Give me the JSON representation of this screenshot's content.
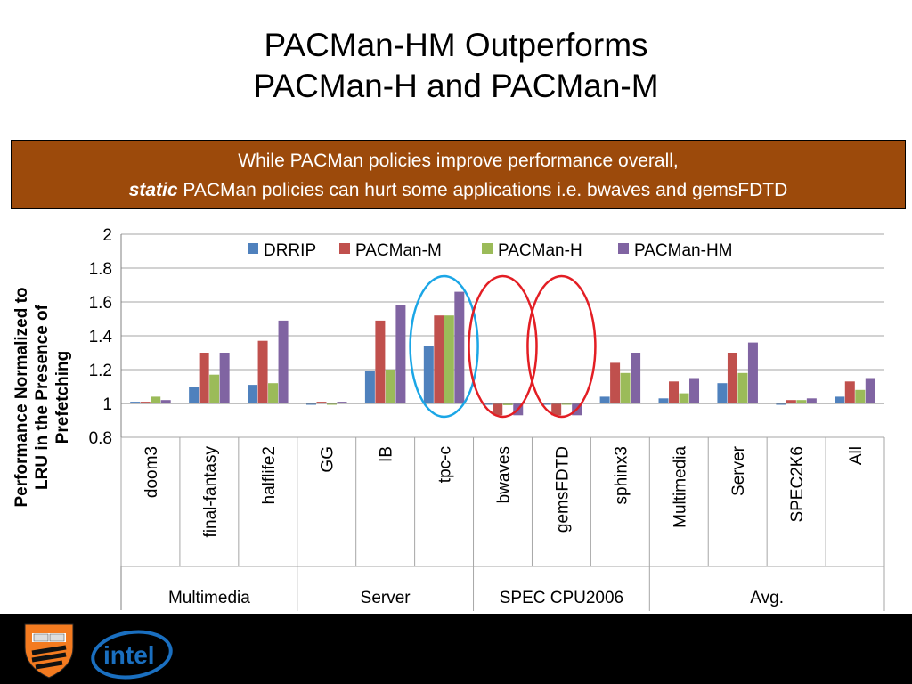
{
  "title": {
    "line1": "PACMan-HM Outperforms",
    "line2": "PACMan-H and PACMan-M"
  },
  "banner": {
    "line1": "While PACMan policies improve performance overall,",
    "emph": "static",
    "line2_rest": " PACMan policies can hurt some applications i.e. bwaves and gemsFDTD",
    "bg_color": "#9c4a0b"
  },
  "chart_data": {
    "type": "bar",
    "ylabel": "Performance Normalized to LRU in the Presence of Prefetching",
    "ylim": [
      0.8,
      2
    ],
    "yticks": [
      0.8,
      1,
      1.2,
      1.4,
      1.6,
      1.8,
      2
    ],
    "baseline": 1,
    "grid": true,
    "legend_position": "top",
    "categories": [
      "doom3",
      "final-fantasy",
      "halflife2",
      "GG",
      "IB",
      "tpc-c",
      "bwaves",
      "gemsFDTD",
      "sphinx3",
      "Multimedia",
      "Server",
      "SPEC2K6",
      "All"
    ],
    "groups": [
      {
        "label": "Multimedia",
        "span": 3
      },
      {
        "label": "Server",
        "span": 3
      },
      {
        "label": "SPEC CPU2006",
        "span": 3
      },
      {
        "label": "Avg.",
        "span": 4
      }
    ],
    "series": [
      {
        "name": "DRRIP",
        "color": "#4f81bd",
        "values": [
          1.01,
          1.1,
          1.11,
          1.0,
          1.19,
          1.34,
          1.0,
          1.0,
          1.04,
          1.03,
          1.12,
          1.0,
          1.04
        ]
      },
      {
        "name": "PACMan-M",
        "color": "#c0504d",
        "values": [
          1.01,
          1.3,
          1.37,
          1.01,
          1.49,
          1.52,
          0.93,
          0.93,
          1.24,
          1.13,
          1.3,
          1.02,
          1.13
        ]
      },
      {
        "name": "PACMan-H",
        "color": "#9bbb59",
        "values": [
          1.04,
          1.17,
          1.12,
          1.0,
          1.2,
          1.52,
          0.99,
          1.0,
          1.18,
          1.06,
          1.18,
          1.02,
          1.08
        ]
      },
      {
        "name": "PACMan-HM",
        "color": "#8064a2",
        "values": [
          1.02,
          1.3,
          1.49,
          1.01,
          1.58,
          1.66,
          0.93,
          0.93,
          1.3,
          1.15,
          1.36,
          1.03,
          1.15
        ]
      }
    ],
    "highlights": [
      {
        "category": "tpc-c",
        "color": "#1ba6e6"
      },
      {
        "category": "bwaves",
        "color": "#e31e24"
      },
      {
        "category": "gemsFDTD",
        "color": "#e31e24"
      }
    ]
  },
  "logos": [
    "princeton-shield",
    "intel"
  ],
  "intel_text": "intel"
}
